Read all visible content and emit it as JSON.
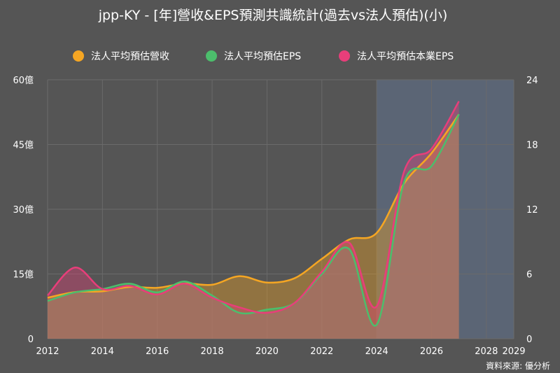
{
  "chart_data": {
    "type": "line",
    "title": "jpp-KY - [年]營收&EPS預測共識統計(過去vs法人預估)(小)",
    "source": "資料來源: 優分析",
    "xlim": [
      2012,
      2029
    ],
    "x_ticks": [
      {
        "value": 2012,
        "label": "2012"
      },
      {
        "value": 2014,
        "label": "2014"
      },
      {
        "value": 2016,
        "label": "2016"
      },
      {
        "value": 2018,
        "label": "2018"
      },
      {
        "value": 2020,
        "label": "2020"
      },
      {
        "value": 2022,
        "label": "2022"
      },
      {
        "value": 2024,
        "label": "2024"
      },
      {
        "value": 2026,
        "label": "2026"
      },
      {
        "value": 2028,
        "label": "2028"
      },
      {
        "value": 2029,
        "label": "2029"
      }
    ],
    "y_left": {
      "min": 0,
      "max": 60,
      "ticks": [
        {
          "value": 0,
          "label": "0"
        },
        {
          "value": 15,
          "label": "15億"
        },
        {
          "value": 30,
          "label": "30億"
        },
        {
          "value": 45,
          "label": "45億"
        },
        {
          "value": 60,
          "label": "60億"
        }
      ]
    },
    "y_right": {
      "min": 0,
      "max": 24,
      "ticks": [
        {
          "value": 0,
          "label": "0"
        },
        {
          "value": 6,
          "label": "6"
        },
        {
          "value": 12,
          "label": "12"
        },
        {
          "value": 18,
          "label": "18"
        },
        {
          "value": 24,
          "label": "24"
        }
      ]
    },
    "forecast_region": {
      "from": 2024,
      "to": 2029
    },
    "legend_position": "top-center",
    "grid": true,
    "series": [
      {
        "name": "法人平均預估營收",
        "axis": "left",
        "color": "#f5a623",
        "x": [
          2012,
          2013,
          2014,
          2015,
          2016,
          2017,
          2018,
          2019,
          2020,
          2021,
          2022,
          2023,
          2024,
          2025,
          2026,
          2027
        ],
        "values": [
          9.5,
          10.8,
          11,
          12,
          11.8,
          12.8,
          12.5,
          14.5,
          13,
          14,
          18.5,
          23,
          24.5,
          36,
          43,
          52
        ]
      },
      {
        "name": "法人平均預估EPS",
        "axis": "right",
        "color": "#4cbe6c",
        "x": [
          2012,
          2013,
          2014,
          2015,
          2016,
          2017,
          2018,
          2019,
          2020,
          2021,
          2022,
          2023,
          2024,
          2025,
          2026,
          2027
        ],
        "values": [
          3.5,
          4.3,
          4.6,
          5.1,
          4.3,
          5.3,
          4.0,
          2.4,
          2.7,
          3.3,
          6.0,
          8.3,
          1.3,
          14.5,
          16.0,
          20.8
        ]
      },
      {
        "name": "法人平均預估本業EPS",
        "axis": "right",
        "color": "#e83e7a",
        "x": [
          2012,
          2013,
          2014,
          2015,
          2016,
          2017,
          2018,
          2019,
          2020,
          2021,
          2022,
          2023,
          2024,
          2025,
          2026,
          2027
        ],
        "values": [
          4.0,
          6.6,
          4.6,
          4.9,
          4.1,
          5.1,
          3.8,
          2.9,
          2.4,
          3.3,
          6.2,
          8.9,
          3.0,
          15.5,
          17.6,
          22.0
        ]
      }
    ]
  }
}
